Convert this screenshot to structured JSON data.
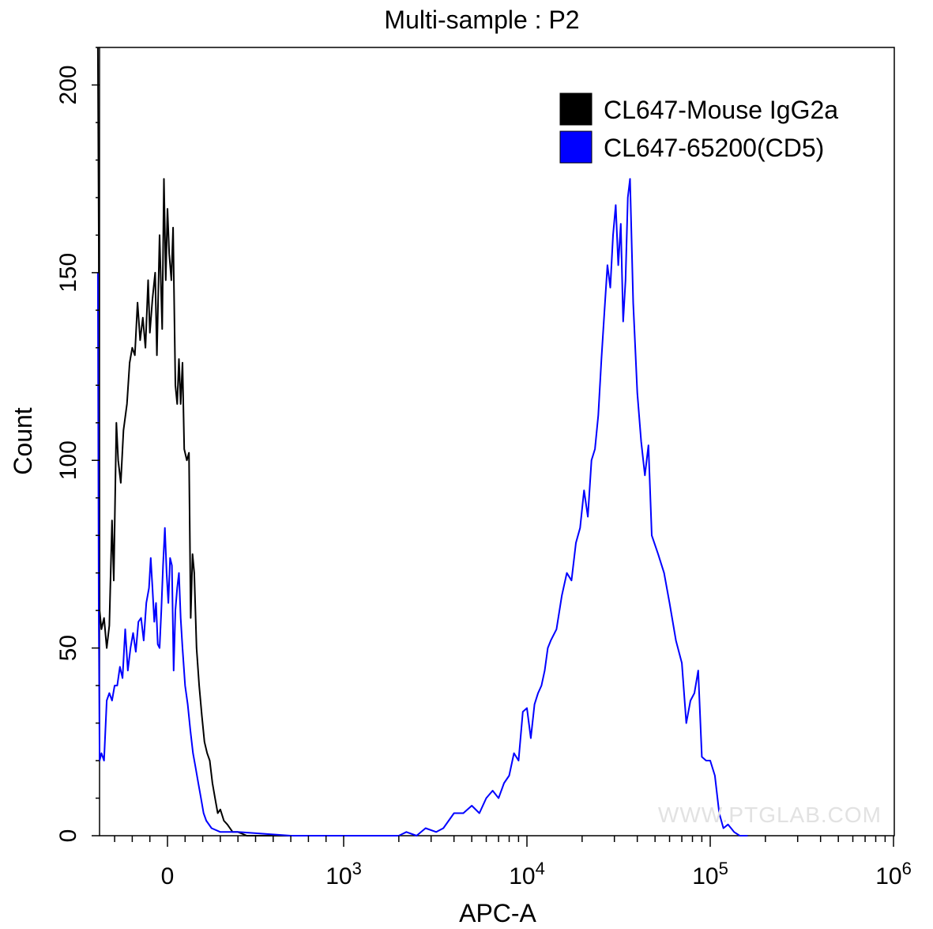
{
  "chart_data": {
    "type": "line",
    "title": "Multi-sample : P2",
    "xlabel": "APC-A",
    "ylabel": "Count",
    "xscale": "biexponential",
    "xlim": [
      -400,
      1000000
    ],
    "ylim": [
      0,
      210
    ],
    "x_ticks": [
      {
        "value": 0,
        "base": "0",
        "exp": ""
      },
      {
        "value": 1000,
        "base": "10",
        "exp": "3"
      },
      {
        "value": 10000,
        "base": "10",
        "exp": "4"
      },
      {
        "value": 100000,
        "base": "10",
        "exp": "5"
      },
      {
        "value": 1000000,
        "base": "10",
        "exp": "6"
      }
    ],
    "y_ticks": [
      0,
      50,
      100,
      150,
      200
    ],
    "grid": false,
    "legend_position": "top-right",
    "watermark": "WWW.PTGLAB.COM",
    "series": [
      {
        "name": "CL647-Mouse IgG2a",
        "color": "#000000",
        "points": [
          [
            -395,
            210
          ],
          [
            -390,
            160
          ],
          [
            -385,
            60
          ],
          [
            -375,
            55
          ],
          [
            -360,
            58
          ],
          [
            -345,
            50
          ],
          [
            -330,
            56
          ],
          [
            -315,
            84
          ],
          [
            -305,
            68
          ],
          [
            -290,
            110
          ],
          [
            -280,
            100
          ],
          [
            -265,
            94
          ],
          [
            -250,
            108
          ],
          [
            -230,
            115
          ],
          [
            -215,
            126
          ],
          [
            -200,
            130
          ],
          [
            -185,
            128
          ],
          [
            -170,
            142
          ],
          [
            -155,
            132
          ],
          [
            -140,
            138
          ],
          [
            -125,
            130
          ],
          [
            -110,
            148
          ],
          [
            -100,
            134
          ],
          [
            -85,
            143
          ],
          [
            -70,
            150
          ],
          [
            -60,
            128
          ],
          [
            -45,
            160
          ],
          [
            -30,
            135
          ],
          [
            -20,
            175
          ],
          [
            -10,
            148
          ],
          [
            0,
            167
          ],
          [
            10,
            155
          ],
          [
            22,
            148
          ],
          [
            32,
            162
          ],
          [
            45,
            120
          ],
          [
            55,
            115
          ],
          [
            65,
            127
          ],
          [
            75,
            115
          ],
          [
            85,
            126
          ],
          [
            95,
            103
          ],
          [
            110,
            100
          ],
          [
            122,
            102
          ],
          [
            132,
            58
          ],
          [
            142,
            75
          ],
          [
            152,
            70
          ],
          [
            165,
            50
          ],
          [
            180,
            40
          ],
          [
            195,
            32
          ],
          [
            210,
            25
          ],
          [
            225,
            22
          ],
          [
            240,
            20
          ],
          [
            255,
            14
          ],
          [
            270,
            10
          ],
          [
            285,
            6
          ],
          [
            300,
            7
          ],
          [
            320,
            4
          ],
          [
            340,
            3
          ],
          [
            370,
            1
          ],
          [
            400,
            1
          ],
          [
            450,
            0
          ],
          [
            500,
            0
          ],
          [
            600,
            0
          ],
          [
            700,
            0
          ],
          [
            800,
            0
          ],
          [
            900,
            0
          ],
          [
            1000,
            0
          ]
        ]
      },
      {
        "name": "CL647-65200(CD5)",
        "color": "#0000ff",
        "points": [
          [
            -395,
            150
          ],
          [
            -390,
            60
          ],
          [
            -385,
            20
          ],
          [
            -375,
            22
          ],
          [
            -360,
            20
          ],
          [
            -345,
            36
          ],
          [
            -330,
            38
          ],
          [
            -315,
            36
          ],
          [
            -300,
            40
          ],
          [
            -285,
            40
          ],
          [
            -270,
            45
          ],
          [
            -255,
            42
          ],
          [
            -240,
            55
          ],
          [
            -225,
            44
          ],
          [
            -210,
            50
          ],
          [
            -195,
            54
          ],
          [
            -180,
            49
          ],
          [
            -165,
            57
          ],
          [
            -150,
            58
          ],
          [
            -135,
            52
          ],
          [
            -120,
            62
          ],
          [
            -105,
            66
          ],
          [
            -95,
            74
          ],
          [
            -85,
            66
          ],
          [
            -75,
            57
          ],
          [
            -65,
            62
          ],
          [
            -55,
            51
          ],
          [
            -45,
            50
          ],
          [
            -35,
            60
          ],
          [
            -25,
            72
          ],
          [
            -15,
            82
          ],
          [
            -5,
            70
          ],
          [
            5,
            62
          ],
          [
            15,
            74
          ],
          [
            25,
            72
          ],
          [
            35,
            44
          ],
          [
            45,
            60
          ],
          [
            55,
            66
          ],
          [
            65,
            70
          ],
          [
            75,
            58
          ],
          [
            85,
            50
          ],
          [
            100,
            40
          ],
          [
            115,
            35
          ],
          [
            130,
            28
          ],
          [
            145,
            22
          ],
          [
            160,
            18
          ],
          [
            175,
            14
          ],
          [
            190,
            10
          ],
          [
            205,
            6
          ],
          [
            220,
            4
          ],
          [
            250,
            2
          ],
          [
            300,
            1
          ],
          [
            400,
            1
          ],
          [
            700,
            0
          ],
          [
            1000,
            0
          ],
          [
            1500,
            0
          ],
          [
            2000,
            0
          ],
          [
            2200,
            1
          ],
          [
            2500,
            0
          ],
          [
            2800,
            2
          ],
          [
            3200,
            1
          ],
          [
            3500,
            2
          ],
          [
            4000,
            6
          ],
          [
            4500,
            6
          ],
          [
            5000,
            8
          ],
          [
            5500,
            6
          ],
          [
            6000,
            10
          ],
          [
            6500,
            12
          ],
          [
            7000,
            10
          ],
          [
            7500,
            14
          ],
          [
            8000,
            16
          ],
          [
            8500,
            22
          ],
          [
            9000,
            20
          ],
          [
            9500,
            33
          ],
          [
            10000,
            34
          ],
          [
            10500,
            26
          ],
          [
            11000,
            35
          ],
          [
            11500,
            38
          ],
          [
            12000,
            40
          ],
          [
            12500,
            44
          ],
          [
            13000,
            50
          ],
          [
            13500,
            52
          ],
          [
            14500,
            55
          ],
          [
            15500,
            64
          ],
          [
            16500,
            70
          ],
          [
            17500,
            68
          ],
          [
            18500,
            78
          ],
          [
            19500,
            82
          ],
          [
            20500,
            92
          ],
          [
            21500,
            85
          ],
          [
            22500,
            100
          ],
          [
            23500,
            103
          ],
          [
            24500,
            112
          ],
          [
            25500,
            127
          ],
          [
            26500,
            140
          ],
          [
            27500,
            152
          ],
          [
            28500,
            146
          ],
          [
            29500,
            160
          ],
          [
            30500,
            168
          ],
          [
            31500,
            152
          ],
          [
            32500,
            163
          ],
          [
            33500,
            137
          ],
          [
            34500,
            148
          ],
          [
            35500,
            170
          ],
          [
            36500,
            175
          ],
          [
            38000,
            142
          ],
          [
            40000,
            118
          ],
          [
            42000,
            105
          ],
          [
            44000,
            96
          ],
          [
            46000,
            104
          ],
          [
            48000,
            80
          ],
          [
            52000,
            75
          ],
          [
            56000,
            70
          ],
          [
            60000,
            62
          ],
          [
            65000,
            52
          ],
          [
            70000,
            46
          ],
          [
            74000,
            30
          ],
          [
            78000,
            36
          ],
          [
            82000,
            38
          ],
          [
            86000,
            44
          ],
          [
            90000,
            21
          ],
          [
            95000,
            20
          ],
          [
            100000,
            20
          ],
          [
            106000,
            16
          ],
          [
            112000,
            6
          ],
          [
            118000,
            2
          ],
          [
            125000,
            3
          ],
          [
            135000,
            1
          ],
          [
            145000,
            0
          ],
          [
            160000,
            0
          ]
        ]
      }
    ]
  }
}
